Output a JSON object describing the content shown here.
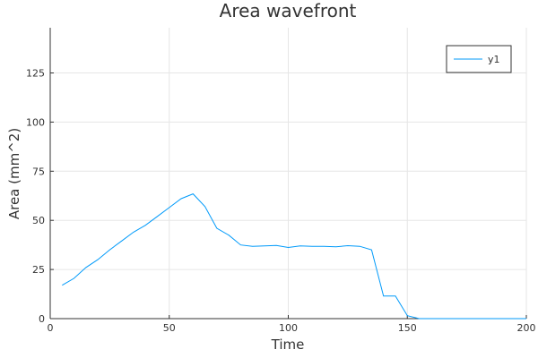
{
  "chart_data": {
    "type": "line",
    "title": "Area wavefront",
    "xlabel": "Time",
    "ylabel": "Area (mm^2)",
    "xlim": [
      0,
      200
    ],
    "ylim": [
      0,
      148
    ],
    "xticks": [
      0,
      50,
      100,
      150,
      200
    ],
    "yticks": [
      0,
      25,
      50,
      75,
      100,
      125
    ],
    "grid": true,
    "legend_position": "top-right",
    "series": [
      {
        "name": "y1",
        "color": "#009AFA",
        "x": [
          5,
          10,
          15,
          20,
          25,
          30,
          35,
          40,
          45,
          50,
          55,
          60,
          65,
          70,
          75,
          80,
          85,
          90,
          95,
          100,
          105,
          110,
          115,
          120,
          125,
          130,
          135,
          140,
          145,
          150,
          155,
          160,
          165,
          170,
          175,
          180,
          185,
          190,
          195,
          200
        ],
        "y": [
          17,
          20.5,
          26,
          30,
          35,
          39.5,
          44,
          47.5,
          52,
          56.5,
          61,
          63.5,
          57,
          46,
          42.5,
          37.5,
          36.8,
          37,
          37.2,
          36.2,
          37,
          36.8,
          36.8,
          36.5,
          37.1,
          36.8,
          35,
          11.5,
          11.5,
          1.5,
          0,
          0,
          0,
          0,
          0,
          0,
          0,
          0,
          0,
          0
        ]
      }
    ]
  }
}
